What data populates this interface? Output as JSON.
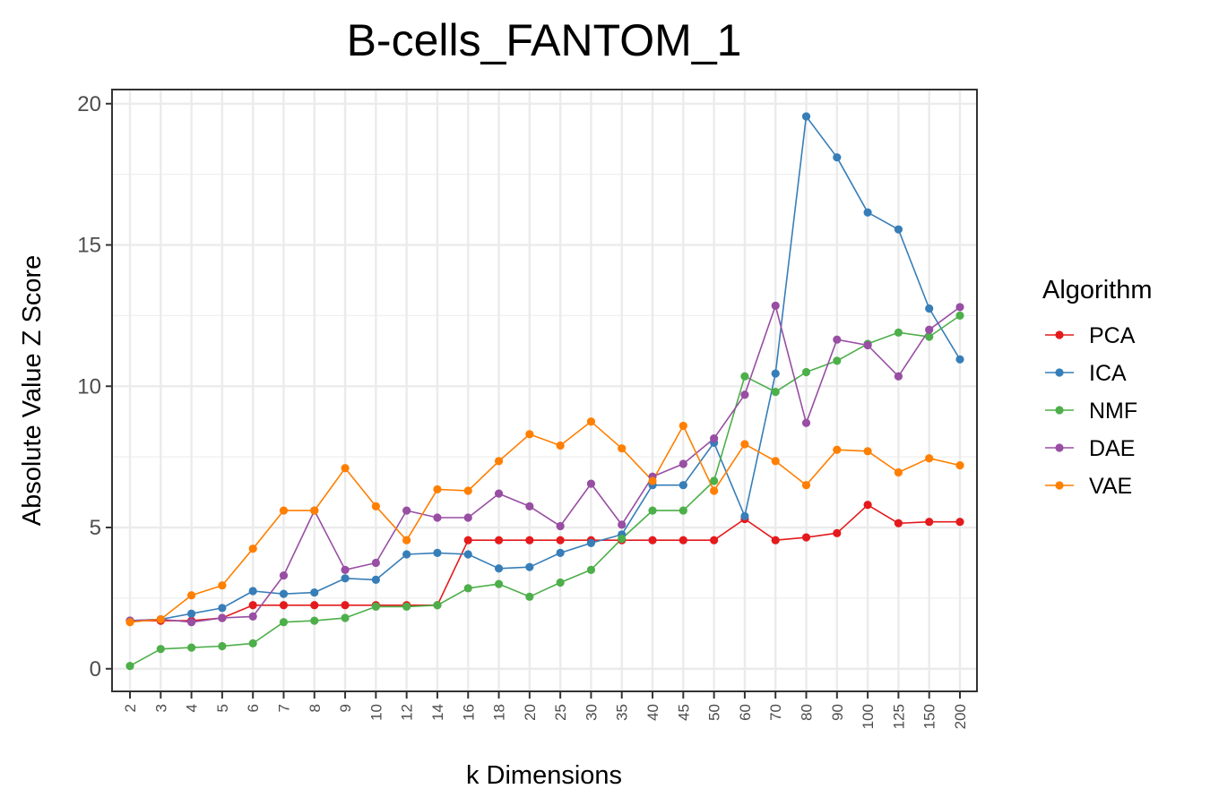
{
  "chart_data": {
    "type": "line",
    "title": "B-cells_FANTOM_1",
    "xlabel": "k Dimensions",
    "ylabel": "Absolute Value Z Score",
    "ylim": [
      -0.8,
      20.5
    ],
    "yticks": [
      0,
      5,
      10,
      15,
      20
    ],
    "grid": true,
    "legend_title": "Algorithm",
    "legend_position": "right",
    "categories": [
      "2",
      "3",
      "4",
      "5",
      "6",
      "7",
      "8",
      "9",
      "10",
      "12",
      "14",
      "16",
      "18",
      "20",
      "25",
      "30",
      "35",
      "40",
      "45",
      "50",
      "60",
      "70",
      "80",
      "90",
      "100",
      "125",
      "150",
      "200"
    ],
    "series": [
      {
        "name": "PCA",
        "color": "#e41a1c",
        "values": [
          1.7,
          1.7,
          1.7,
          1.8,
          2.25,
          2.25,
          2.25,
          2.25,
          2.25,
          2.25,
          2.25,
          4.55,
          4.55,
          4.55,
          4.55,
          4.55,
          4.55,
          4.55,
          4.55,
          4.55,
          5.3,
          4.55,
          4.65,
          4.8,
          5.8,
          5.15,
          5.2,
          5.2
        ]
      },
      {
        "name": "ICA",
        "color": "#377eb8",
        "values": [
          1.7,
          1.75,
          1.95,
          2.15,
          2.75,
          2.65,
          2.7,
          3.2,
          3.15,
          4.05,
          4.1,
          4.05,
          3.55,
          3.6,
          4.1,
          4.45,
          4.75,
          6.5,
          6.5,
          8.0,
          5.4,
          10.45,
          19.55,
          18.1,
          16.15,
          15.55,
          12.75,
          10.95
        ]
      },
      {
        "name": "NMF",
        "color": "#4daf4a",
        "values": [
          0.1,
          0.7,
          0.75,
          0.8,
          0.9,
          1.65,
          1.7,
          1.8,
          2.2,
          2.2,
          2.25,
          2.85,
          3.0,
          2.55,
          3.05,
          3.5,
          4.6,
          5.6,
          5.6,
          6.65,
          10.35,
          9.8,
          10.5,
          10.9,
          11.5,
          11.9,
          11.75,
          12.5
        ]
      },
      {
        "name": "DAE",
        "color": "#984ea3",
        "values": [
          1.7,
          1.75,
          1.65,
          1.8,
          1.85,
          3.3,
          5.6,
          3.5,
          3.75,
          5.6,
          5.35,
          5.35,
          6.2,
          5.75,
          5.05,
          6.55,
          5.1,
          6.8,
          7.25,
          8.15,
          9.7,
          12.85,
          8.7,
          11.65,
          11.45,
          10.35,
          12.0,
          12.8
        ]
      },
      {
        "name": "VAE",
        "color": "#ff7f00",
        "values": [
          1.65,
          1.75,
          2.6,
          2.95,
          4.25,
          5.6,
          5.6,
          7.1,
          5.75,
          4.55,
          6.35,
          6.3,
          7.35,
          8.3,
          7.9,
          8.75,
          7.8,
          6.65,
          8.6,
          6.3,
          7.95,
          7.35,
          6.5,
          7.75,
          7.7,
          6.95,
          7.45,
          7.2
        ]
      }
    ]
  }
}
